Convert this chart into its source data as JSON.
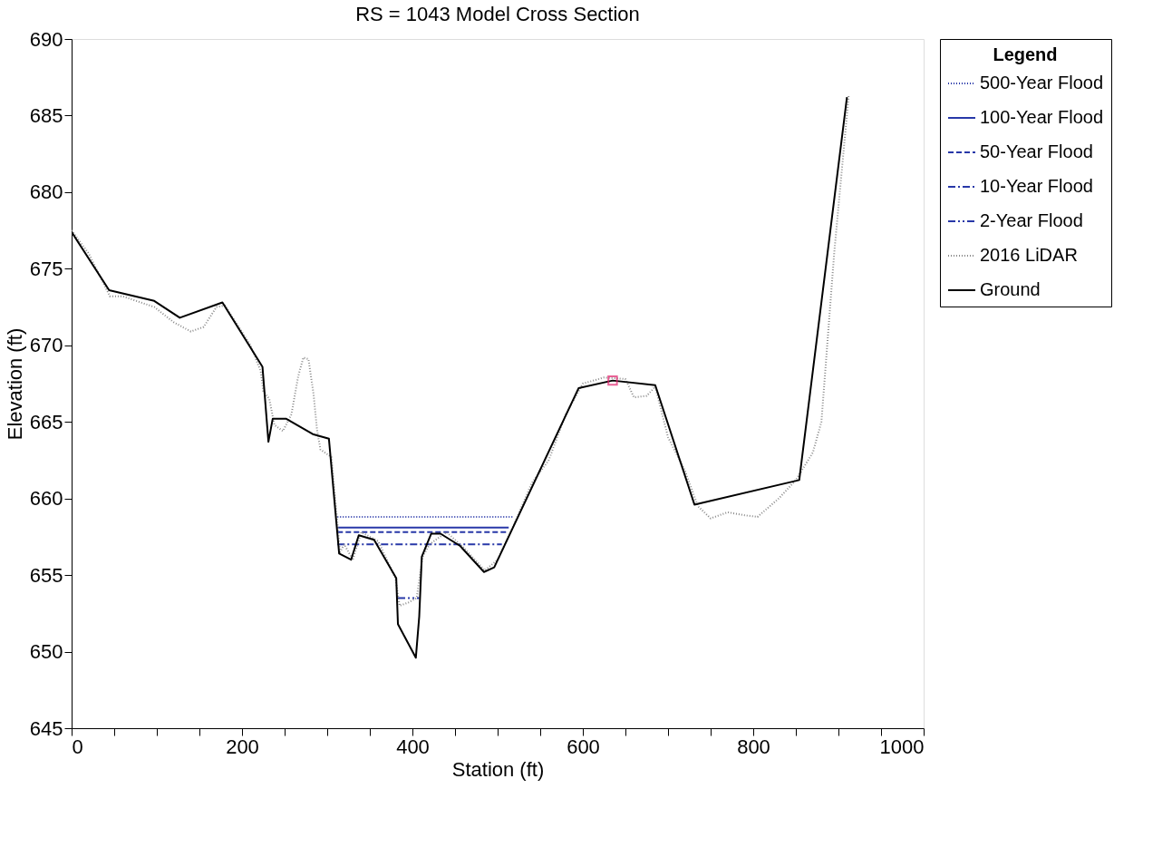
{
  "chart_data": {
    "type": "line",
    "title": "RS = 1043    Model Cross Section",
    "xlabel": "Station (ft)",
    "ylabel": "Elevation (ft)",
    "legend_title": "Legend",
    "legend": "right",
    "grid": false,
    "xlim": [
      0,
      1000
    ],
    "ylim": [
      645,
      690
    ],
    "xticks": [
      0,
      {
        "value": 50,
        "label": null
      },
      {
        "value": 100,
        "label": null
      },
      {
        "value": 150,
        "label": null
      },
      200,
      {
        "value": 250,
        "label": null
      },
      {
        "value": 300,
        "label": null
      },
      {
        "value": 350,
        "label": null
      },
      400,
      {
        "value": 450,
        "label": null
      },
      {
        "value": 500,
        "label": null
      },
      {
        "value": 550,
        "label": null
      },
      600,
      {
        "value": 650,
        "label": null
      },
      {
        "value": 700,
        "label": null
      },
      {
        "value": 750,
        "label": null
      },
      800,
      {
        "value": 850,
        "label": null
      },
      {
        "value": 900,
        "label": null
      },
      {
        "value": 950,
        "label": null
      },
      1000
    ],
    "yticks": [
      645,
      650,
      655,
      660,
      665,
      670,
      675,
      680,
      685,
      690
    ],
    "series": [
      {
        "name": "500-Year Flood",
        "type": "line",
        "color": "#2838a8",
        "line_style": "dotted",
        "x": [
          312,
          518
        ],
        "values": [
          658.8,
          658.8
        ]
      },
      {
        "name": "100-Year Flood",
        "type": "line",
        "color": "#2838a8",
        "line_style": "solid",
        "x": [
          312,
          513
        ],
        "values": [
          658.1,
          658.1
        ]
      },
      {
        "name": "50-Year Flood",
        "type": "line",
        "color": "#2838a8",
        "line_style": "dashed",
        "x": [
          312,
          512
        ],
        "values": [
          657.8,
          657.8
        ]
      },
      {
        "name": "10-Year Flood",
        "type": "line",
        "color": "#2838a8",
        "line_style": "dashdot",
        "x": [
          312,
          505
        ],
        "values": [
          657.0,
          657.0
        ]
      },
      {
        "name": "2-Year Flood",
        "type": "line",
        "color": "#2838a8",
        "line_style": "dashdotdot",
        "x": [
          383,
          408
        ],
        "values": [
          653.5,
          653.5
        ]
      },
      {
        "name": "2016 LiDAR",
        "type": "line",
        "color": "#8a8a8a",
        "line_style": "dotted",
        "x": [
          0,
          20,
          45,
          60,
          97,
          120,
          140,
          155,
          170,
          180,
          210,
          222,
          225,
          232,
          238,
          248,
          258,
          266,
          272,
          278,
          284,
          288,
          292,
          305,
          315,
          320,
          330,
          340,
          360,
          380,
          385,
          395,
          405,
          412,
          420,
          440,
          460,
          485,
          500,
          520,
          540,
          560,
          580,
          600,
          625,
          650,
          660,
          675,
          685,
          700,
          720,
          735,
          750,
          770,
          790,
          805,
          830,
          850,
          870,
          880,
          895,
          912
        ],
        "values": [
          677.5,
          676,
          673.2,
          673.2,
          672.5,
          671.5,
          670.9,
          671.2,
          672.5,
          672.6,
          670,
          668.3,
          667,
          666.5,
          664.8,
          664.4,
          665.5,
          668,
          669.2,
          669.1,
          666.8,
          664.5,
          663.2,
          662.7,
          656.5,
          657,
          656,
          657.8,
          657.2,
          654.8,
          653,
          653.2,
          653.5,
          656.2,
          657,
          657.8,
          656.8,
          655.3,
          656,
          658.4,
          661,
          662.5,
          665.5,
          667.5,
          667.9,
          667.8,
          666.6,
          666.7,
          667.3,
          664,
          661.8,
          659.5,
          658.7,
          659.1,
          658.9,
          658.8,
          660,
          661.2,
          663,
          665,
          676,
          686.3
        ]
      },
      {
        "name": "Ground",
        "type": "line",
        "color": "#000000",
        "line_style": "solid",
        "x": [
          0,
          44,
          97,
          127,
          177,
          224,
          231,
          236,
          252,
          283,
          302,
          314,
          328,
          337,
          355,
          381,
          383,
          404,
          408,
          411,
          422,
          433,
          456,
          484,
          496,
          595,
          635,
          685,
          731,
          854,
          910
        ],
        "values": [
          677.4,
          673.6,
          672.9,
          671.8,
          672.8,
          668.6,
          663.7,
          665.2,
          665.2,
          664.2,
          663.9,
          656.4,
          656.0,
          657.6,
          657.3,
          654.8,
          651.8,
          649.6,
          652.3,
          656.2,
          657.7,
          657.7,
          656.9,
          655.2,
          655.5,
          667.2,
          667.7,
          667.4,
          659.6,
          661.2,
          686.2
        ]
      },
      {
        "type": "scatter",
        "marker": "square",
        "color": "#e0206a",
        "x": [
          635
        ],
        "values": [
          667.7
        ]
      }
    ]
  }
}
